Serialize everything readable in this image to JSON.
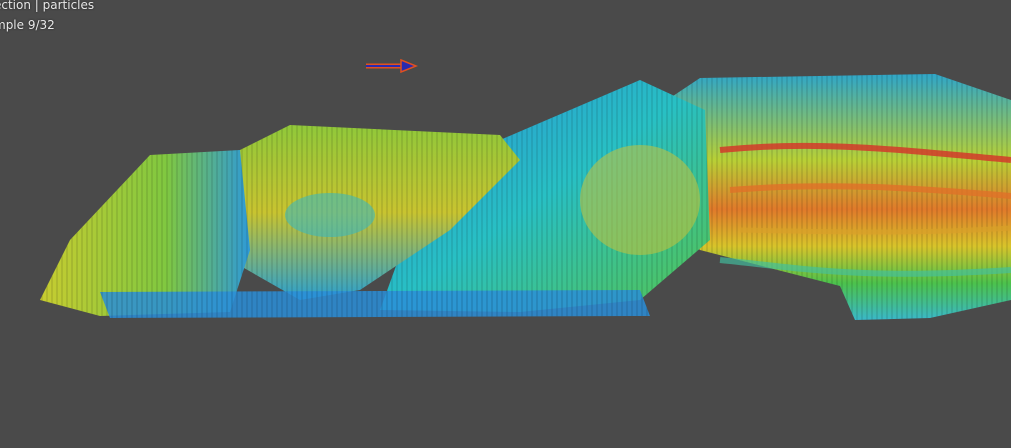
{
  "viewport": {
    "info_lines": [
      "ection | particles",
      "mple 9/32"
    ],
    "background_color": "#4a4a4a"
  },
  "direction_indicator": {
    "icon": "arrow-right-icon",
    "fill_color": "#2a2ab0",
    "outline_color": "#e05020"
  },
  "vector_field": {
    "colormap": [
      "#1e3cc8",
      "#1e8cdc",
      "#28c8c8",
      "#50c850",
      "#b4d232",
      "#e6c828",
      "#e66428",
      "#c81e1e"
    ]
  }
}
